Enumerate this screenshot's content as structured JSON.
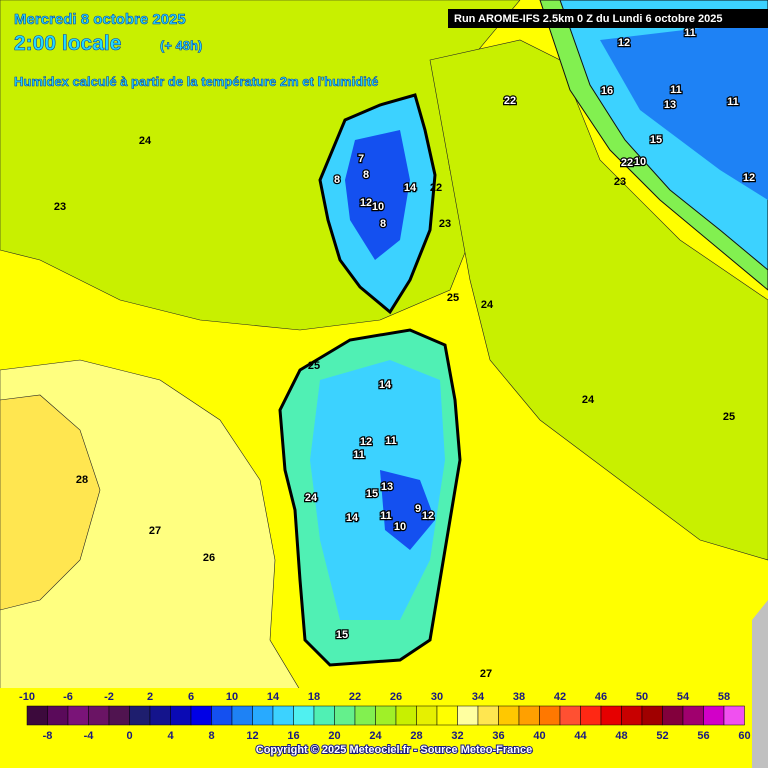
{
  "header": {
    "date": "Mercredi 8 octobre 2025",
    "time": "2:00 locale",
    "lead": "(+ 48h)",
    "subtitle": "Humidex calculé à partir de la température 2m et l'humidité",
    "run": "Run AROME-IFS 2.5km 0 Z du Lundi 6 octobre 2025"
  },
  "map_labels": [
    "24",
    "23",
    "25",
    "24",
    "25",
    "23",
    "22",
    "24",
    "25",
    "26",
    "27",
    "28",
    "27",
    "7",
    "8",
    "8",
    "12",
    "10",
    "8",
    "14",
    "14",
    "11",
    "12",
    "11",
    "13",
    "15",
    "11",
    "10",
    "9",
    "12",
    "14",
    "15",
    "24",
    "12",
    "11",
    "16",
    "13",
    "11",
    "11",
    "15",
    "12",
    "23",
    "22",
    "10",
    "22"
  ],
  "legend": {
    "top_labels": [
      -10,
      -6,
      -2,
      2,
      6,
      10,
      14,
      18,
      22,
      26,
      30,
      34,
      38,
      42,
      46,
      50,
      54,
      58
    ],
    "bottom_labels": [
      -8,
      -4,
      0,
      4,
      8,
      12,
      16,
      20,
      24,
      28,
      32,
      36,
      40,
      44,
      48,
      52,
      56,
      60
    ],
    "colors": [
      "#3c0a3c",
      "#5a0a5a",
      "#7a1478",
      "#6a1464",
      "#501450",
      "#1e1e6e",
      "#14148c",
      "#0a0ab4",
      "#0000e6",
      "#1450f0",
      "#1e82f5",
      "#28aaff",
      "#3cd2ff",
      "#50f0f0",
      "#50f0b4",
      "#64f08c",
      "#82f050",
      "#a0f028",
      "#c8f000",
      "#e6f000",
      "#ffff00",
      "#ffffa0",
      "#ffe650",
      "#ffc800",
      "#ffa000",
      "#ff7800",
      "#ff5032",
      "#ff2814",
      "#e60000",
      "#c80000",
      "#a00000",
      "#82003c",
      "#a0006e",
      "#d200c8",
      "#f050f0"
    ]
  },
  "copyright": "Copyright © 2025 Meteociel.fr - Source Meteo-France"
}
